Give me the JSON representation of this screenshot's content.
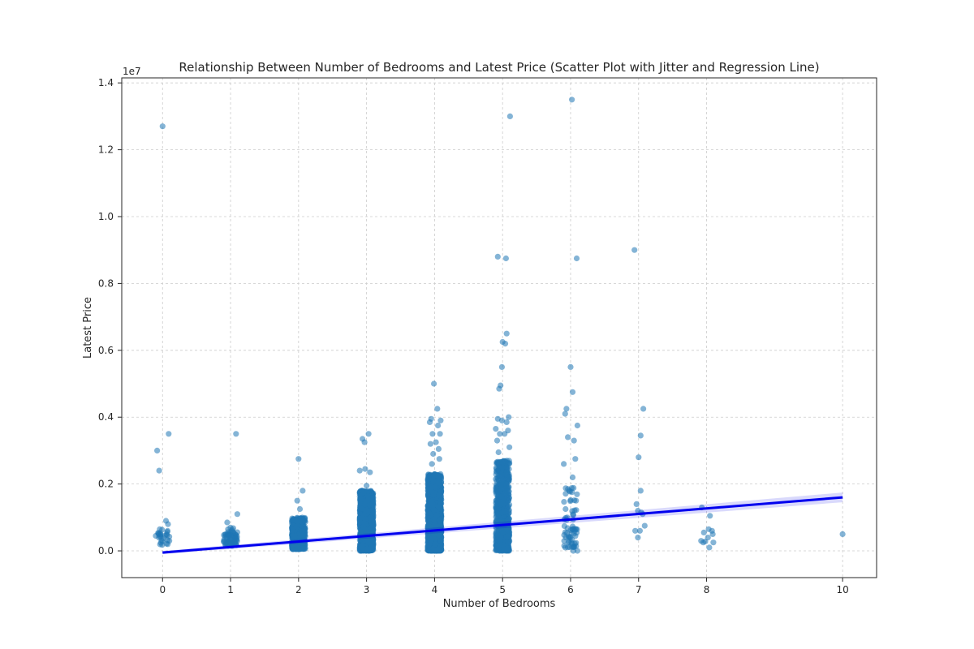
{
  "chart_data": {
    "type": "scatter",
    "title": "Relationship Between Number of Bedrooms and Latest Price (Scatter Plot with Jitter and Regression Line)",
    "xlabel": "Number of Bedrooms",
    "ylabel": "Latest Price",
    "y_offset_label": "1e7",
    "x_categories": [
      "0",
      "1",
      "2",
      "3",
      "4",
      "5",
      "6",
      "7",
      "8",
      "10"
    ],
    "y_ticks": [
      "0.0",
      "0.2",
      "0.4",
      "0.6",
      "0.8",
      "1.0",
      "1.2",
      "1.4"
    ],
    "y_tick_values": [
      0,
      2000000,
      4000000,
      6000000,
      8000000,
      10000000,
      12000000,
      14000000
    ],
    "ylim": [
      -800000,
      14150000
    ],
    "xlim": [
      -0.6,
      10.5
    ],
    "grid": true,
    "point_color": "#1f77b4",
    "regression_color": "#0000ee",
    "regression_line": {
      "x": [
        0,
        10
      ],
      "y": [
        -50000,
        1600000
      ]
    },
    "series": [
      {
        "points": [
          [
            0,
            12700000
          ],
          [
            -0.08,
            3000000
          ],
          [
            0.09,
            3500000
          ],
          [
            -0.05,
            2400000
          ],
          [
            0.05,
            900000
          ],
          [
            0.08,
            800000
          ],
          [
            -0.04,
            650000
          ],
          [
            0.06,
            500000
          ],
          [
            -0.03,
            420000
          ],
          [
            0.02,
            380000
          ],
          [
            -0.1,
            450000
          ],
          [
            0.1,
            300000
          ],
          [
            1.08,
            3500000
          ],
          [
            1.1,
            1100000
          ],
          [
            0.95,
            850000
          ],
          [
            1.02,
            600000
          ],
          [
            2.0,
            2750000
          ],
          [
            2.06,
            1800000
          ],
          [
            1.98,
            1500000
          ],
          [
            2.02,
            1250000
          ],
          [
            2.94,
            3350000
          ],
          [
            3.03,
            3500000
          ],
          [
            2.98,
            2450000
          ],
          [
            3.05,
            2350000
          ],
          [
            2.9,
            2400000
          ],
          [
            2.97,
            3250000
          ],
          [
            3.0,
            1950000
          ],
          [
            3.99,
            5000000
          ],
          [
            4.04,
            4250000
          ],
          [
            3.95,
            3950000
          ],
          [
            4.09,
            3900000
          ],
          [
            3.93,
            3850000
          ],
          [
            4.05,
            3750000
          ],
          [
            3.97,
            3500000
          ],
          [
            4.08,
            3500000
          ],
          [
            4.02,
            3250000
          ],
          [
            3.94,
            3200000
          ],
          [
            4.06,
            3050000
          ],
          [
            3.98,
            2900000
          ],
          [
            4.07,
            2750000
          ],
          [
            3.96,
            2600000
          ],
          [
            4.93,
            8800000
          ],
          [
            5.05,
            8750000
          ],
          [
            5.11,
            13000000
          ],
          [
            5.06,
            6500000
          ],
          [
            5.0,
            6250000
          ],
          [
            5.04,
            6200000
          ],
          [
            4.99,
            5500000
          ],
          [
            4.97,
            4950000
          ],
          [
            4.95,
            4850000
          ],
          [
            5.09,
            4000000
          ],
          [
            4.93,
            3950000
          ],
          [
            4.99,
            3900000
          ],
          [
            5.06,
            3850000
          ],
          [
            4.9,
            3650000
          ],
          [
            5.08,
            3600000
          ],
          [
            4.96,
            3500000
          ],
          [
            5.03,
            3500000
          ],
          [
            4.92,
            3300000
          ],
          [
            5.1,
            3100000
          ],
          [
            4.94,
            2950000
          ],
          [
            6.02,
            13500000
          ],
          [
            6.09,
            8750000
          ],
          [
            6.0,
            5500000
          ],
          [
            6.03,
            4750000
          ],
          [
            5.94,
            4250000
          ],
          [
            5.92,
            4100000
          ],
          [
            6.1,
            3750000
          ],
          [
            5.96,
            3400000
          ],
          [
            6.05,
            3300000
          ],
          [
            6.07,
            2750000
          ],
          [
            5.9,
            2600000
          ],
          [
            6.03,
            2200000
          ],
          [
            5.98,
            1800000
          ],
          [
            6.08,
            1500000
          ],
          [
            5.95,
            1000000
          ],
          [
            6.06,
            600000
          ],
          [
            6.04,
            0
          ],
          [
            6.1,
            0
          ],
          [
            5.93,
            400000
          ],
          [
            6.94,
            9000000
          ],
          [
            7.07,
            4250000
          ],
          [
            7.03,
            3450000
          ],
          [
            7.0,
            2800000
          ],
          [
            7.03,
            1800000
          ],
          [
            6.97,
            1400000
          ],
          [
            6.99,
            1200000
          ],
          [
            7.06,
            1100000
          ],
          [
            7.09,
            750000
          ],
          [
            6.95,
            600000
          ],
          [
            7.02,
            600000
          ],
          [
            6.99,
            400000
          ],
          [
            7.04,
            1150000
          ],
          [
            7.93,
            1300000
          ],
          [
            8.05,
            1050000
          ],
          [
            7.96,
            550000
          ],
          [
            8.08,
            600000
          ],
          [
            8.03,
            650000
          ],
          [
            7.92,
            300000
          ],
          [
            8.02,
            400000
          ],
          [
            8.1,
            250000
          ],
          [
            7.98,
            280000
          ],
          [
            8.09,
            500000
          ],
          [
            7.95,
            250000
          ],
          [
            8.04,
            100000
          ],
          [
            10.0,
            500000
          ]
        ],
        "dense_clusters": [
          {
            "x": 0,
            "n": 22,
            "y_min": 150000,
            "y_max": 650000,
            "spread": 0.1
          },
          {
            "x": 1,
            "n": 70,
            "y_min": 150000,
            "y_max": 700000,
            "spread": 0.1
          },
          {
            "x": 2,
            "n": 450,
            "y_min": 50000,
            "y_max": 1000000,
            "spread": 0.1
          },
          {
            "x": 3,
            "n": 1300,
            "y_min": 0,
            "y_max": 1800000,
            "spread": 0.1
          },
          {
            "x": 4,
            "n": 1700,
            "y_min": 0,
            "y_max": 2300000,
            "spread": 0.1
          },
          {
            "x": 5,
            "n": 700,
            "y_min": 0,
            "y_max": 2700000,
            "spread": 0.1
          },
          {
            "x": 6,
            "n": 60,
            "y_min": 100000,
            "y_max": 1900000,
            "spread": 0.1
          }
        ]
      }
    ]
  }
}
